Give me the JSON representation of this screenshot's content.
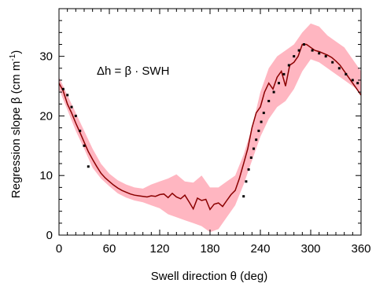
{
  "chart_data": {
    "type": "line",
    "title": "",
    "xlabel": "Swell direction θ (deg)",
    "ylabel_main": "Regression slope β  (cm m",
    "ylabel_sup": "-1",
    "ylabel_close": ")",
    "annotation": "Δh  =  β · SWH",
    "xlim": [
      0,
      360
    ],
    "ylim": [
      0,
      38
    ],
    "xticks": [
      0,
      60,
      120,
      180,
      240,
      300,
      360
    ],
    "yticks": [
      0,
      10,
      20,
      30
    ],
    "grid": false,
    "colors": {
      "line": "#8b0000",
      "band": "#ffb6c1",
      "points": "#000000"
    },
    "series": [
      {
        "role": "line",
        "x": [
          0,
          5,
          10,
          15,
          20,
          25,
          30,
          35,
          40,
          45,
          50,
          55,
          60,
          65,
          70,
          75,
          80,
          85,
          90,
          95,
          100,
          105,
          110,
          115,
          120,
          125,
          130,
          135,
          140,
          145,
          150,
          155,
          160,
          165,
          170,
          175,
          180,
          185,
          190,
          195,
          200,
          205,
          210,
          215,
          220,
          225,
          230,
          235,
          240,
          245,
          250,
          255,
          260,
          265,
          270,
          275,
          280,
          285,
          290,
          295,
          300,
          305,
          310,
          315,
          320,
          325,
          330,
          335,
          340,
          345,
          350,
          355,
          360
        ],
        "y": [
          25.5,
          24.2,
          22.0,
          20.5,
          18.8,
          17.2,
          15.6,
          14.0,
          12.7,
          11.5,
          10.4,
          9.6,
          9.0,
          8.4,
          7.9,
          7.5,
          7.2,
          6.9,
          6.7,
          6.6,
          6.5,
          6.4,
          6.6,
          6.5,
          6.8,
          6.9,
          6.3,
          7.0,
          6.4,
          6.1,
          6.7,
          5.6,
          4.4,
          6.2,
          5.8,
          6.0,
          4.3,
          5.2,
          5.4,
          4.8,
          5.8,
          6.8,
          7.5,
          9.5,
          12.0,
          14.5,
          18.0,
          20.5,
          21.5,
          24.0,
          25.5,
          24.5,
          26.5,
          27.5,
          25.0,
          28.5,
          29.0,
          30.0,
          32.0,
          32.0,
          31.5,
          31.0,
          30.8,
          30.5,
          30.2,
          29.8,
          29.2,
          28.5,
          27.5,
          26.5,
          25.5,
          24.5,
          23.5
        ]
      },
      {
        "role": "band-upper",
        "x": [
          0,
          10,
          20,
          30,
          40,
          50,
          60,
          70,
          80,
          90,
          100,
          110,
          120,
          130,
          140,
          150,
          160,
          170,
          180,
          190,
          200,
          210,
          220,
          230,
          240,
          250,
          260,
          270,
          280,
          290,
          300,
          310,
          320,
          330,
          340,
          350,
          360
        ],
        "y": [
          26.5,
          23.5,
          20.5,
          17.5,
          14.5,
          12.0,
          10.3,
          9.2,
          8.5,
          8.0,
          7.8,
          8.5,
          9.0,
          9.5,
          10.2,
          9.0,
          8.8,
          10.0,
          8.0,
          8.0,
          9.0,
          10.0,
          13.5,
          18.0,
          24.0,
          28.0,
          30.0,
          31.0,
          32.0,
          34.0,
          35.5,
          35.0,
          33.5,
          32.5,
          31.5,
          29.5,
          27.5
        ]
      },
      {
        "role": "band-lower",
        "x": [
          0,
          10,
          20,
          30,
          40,
          50,
          60,
          70,
          80,
          90,
          100,
          110,
          120,
          130,
          140,
          150,
          160,
          170,
          180,
          190,
          200,
          210,
          220,
          230,
          240,
          250,
          260,
          270,
          280,
          290,
          300,
          310,
          320,
          330,
          340,
          350,
          360
        ],
        "y": [
          24.5,
          21.0,
          17.5,
          14.5,
          11.3,
          9.5,
          8.2,
          7.0,
          6.3,
          5.8,
          5.5,
          5.0,
          4.5,
          3.5,
          3.0,
          2.5,
          2.0,
          1.5,
          0.5,
          1.0,
          3.0,
          5.0,
          8.5,
          12.5,
          16.5,
          19.5,
          21.5,
          22.5,
          24.5,
          27.5,
          29.5,
          29.0,
          28.0,
          27.0,
          26.0,
          25.0,
          24.0
        ]
      },
      {
        "role": "points",
        "x": [
          5,
          10,
          15,
          20,
          25,
          30,
          35,
          220,
          223,
          226,
          229,
          232,
          235,
          238,
          241,
          244,
          250,
          256,
          262,
          268,
          274,
          280,
          286,
          292,
          302,
          310,
          318,
          326,
          334,
          342,
          350,
          356
        ],
        "y": [
          24.5,
          23.5,
          21.5,
          20.0,
          17.5,
          15.0,
          11.5,
          6.5,
          9.0,
          11.0,
          13.0,
          14.5,
          16.0,
          17.5,
          19.0,
          20.5,
          22.5,
          24.0,
          25.5,
          27.0,
          28.5,
          30.0,
          31.0,
          32.0,
          31.0,
          30.5,
          30.0,
          29.0,
          28.0,
          27.0,
          26.0,
          25.5
        ]
      }
    ]
  }
}
